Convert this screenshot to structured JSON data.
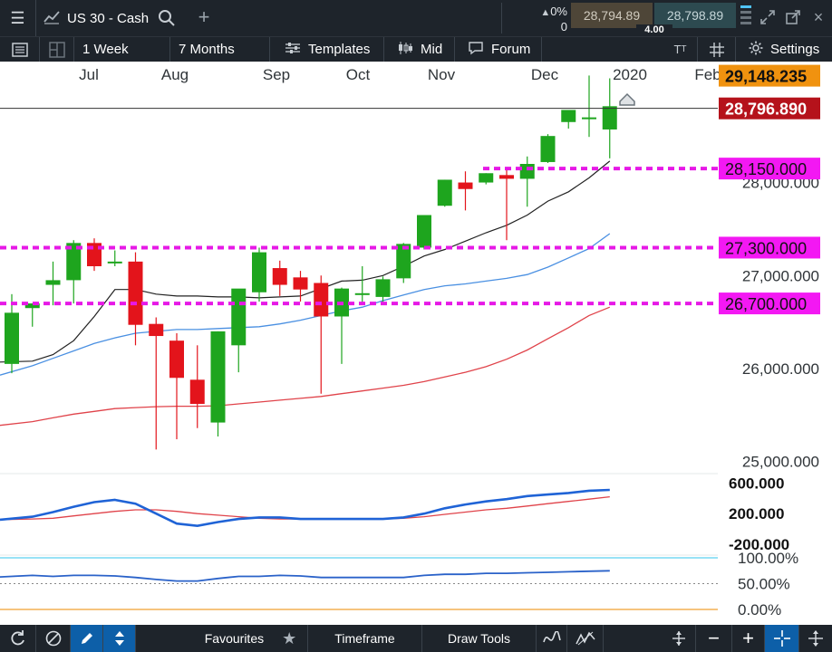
{
  "topbar": {
    "instrument": "US 30 - Cash",
    "change_pct": "0%",
    "change_abs": "0",
    "sell_price": "28,794.89",
    "buy_price": "28,798.89",
    "spread": "4.00"
  },
  "toolbar": {
    "interval": "1 Week",
    "range": "7 Months",
    "templates": "Templates",
    "price_type": "Mid",
    "forum": "Forum",
    "settings": "Settings"
  },
  "bottombar": {
    "favourites": "Favourites",
    "timeframe": "Timeframe",
    "draw_tools": "Draw Tools"
  },
  "colors": {
    "bull": "#1ea51e",
    "bear": "#e3141b",
    "level_line": "#e619e6",
    "ma_fast": "#222222",
    "ma_mid": "#4a90e2",
    "ma_slow": "#e0434a",
    "current_price_bg": "#b5121b",
    "high_price_bg": "#f0920f"
  },
  "chart_data": {
    "type": "candlestick",
    "x_labels": [
      "Jul",
      "Aug",
      "Sep",
      "Oct",
      "Nov",
      "Dec",
      "2020",
      "Feb"
    ],
    "y_labels": [
      "28,000.000",
      "27,000.000",
      "26,000.000",
      "25,000.000"
    ],
    "ylim": [
      24900,
      29300
    ],
    "price_tags": {
      "high": "29,148.235",
      "current": "28,796.890",
      "levels": [
        "28,150.000",
        "27,300.000",
        "26,700.000"
      ]
    },
    "level_values": [
      28150,
      27300,
      26700
    ],
    "current_value": 28796.89,
    "candles": [
      {
        "o": 26050,
        "h": 26800,
        "l": 25950,
        "c": 26600
      },
      {
        "o": 26650,
        "h": 26700,
        "l": 26450,
        "c": 26700
      },
      {
        "o": 26900,
        "h": 27150,
        "l": 26680,
        "c": 26950
      },
      {
        "o": 26950,
        "h": 27380,
        "l": 26700,
        "c": 27350
      },
      {
        "o": 27350,
        "h": 27400,
        "l": 27050,
        "c": 27100
      },
      {
        "o": 27150,
        "h": 27270,
        "l": 27100,
        "c": 27150
      },
      {
        "o": 27150,
        "h": 27250,
        "l": 26250,
        "c": 26470
      },
      {
        "o": 26480,
        "h": 26550,
        "l": 25130,
        "c": 26350
      },
      {
        "o": 26300,
        "h": 26380,
        "l": 25240,
        "c": 25900
      },
      {
        "o": 25880,
        "h": 26250,
        "l": 25360,
        "c": 25620
      },
      {
        "o": 25420,
        "h": 26400,
        "l": 25270,
        "c": 26400
      },
      {
        "o": 26250,
        "h": 26850,
        "l": 25960,
        "c": 26860
      },
      {
        "o": 26820,
        "h": 27300,
        "l": 26720,
        "c": 27250
      },
      {
        "o": 27080,
        "h": 27160,
        "l": 26780,
        "c": 26900
      },
      {
        "o": 26980,
        "h": 27050,
        "l": 26720,
        "c": 26850
      },
      {
        "o": 26920,
        "h": 27000,
        "l": 25730,
        "c": 26560
      },
      {
        "o": 26560,
        "h": 26870,
        "l": 26050,
        "c": 26860
      },
      {
        "o": 26810,
        "h": 27100,
        "l": 26690,
        "c": 26810
      },
      {
        "o": 26770,
        "h": 26990,
        "l": 26690,
        "c": 26960
      },
      {
        "o": 26970,
        "h": 27350,
        "l": 26920,
        "c": 27340
      },
      {
        "o": 27300,
        "h": 27650,
        "l": 27280,
        "c": 27650
      },
      {
        "o": 27750,
        "h": 28030,
        "l": 27740,
        "c": 28030
      },
      {
        "o": 28000,
        "h": 28120,
        "l": 27700,
        "c": 27930
      },
      {
        "o": 28000,
        "h": 28100,
        "l": 27980,
        "c": 28100
      },
      {
        "o": 28080,
        "h": 28150,
        "l": 27380,
        "c": 28040
      },
      {
        "o": 28040,
        "h": 28280,
        "l": 27740,
        "c": 28200
      },
      {
        "o": 28220,
        "h": 28520,
        "l": 28210,
        "c": 28500
      },
      {
        "o": 28650,
        "h": 28760,
        "l": 28580,
        "c": 28780
      },
      {
        "o": 28700,
        "h": 29150,
        "l": 28490,
        "c": 28700
      },
      {
        "o": 28570,
        "h": 29120,
        "l": 28260,
        "c": 28820
      }
    ],
    "ma_fast": [
      26070,
      26080,
      26150,
      26300,
      26560,
      26850,
      26850,
      26800,
      26780,
      26780,
      26770,
      26770,
      26760,
      26770,
      26780,
      26860,
      26940,
      26950,
      27000,
      27100,
      27210,
      27280,
      27370,
      27460,
      27540,
      27650,
      27800,
      27900,
      28050,
      28230
    ],
    "ma_mid": [
      25930,
      26030,
      26110,
      26190,
      26270,
      26330,
      26380,
      26400,
      26420,
      26420,
      26430,
      26440,
      26450,
      26480,
      26520,
      26570,
      26620,
      26660,
      26730,
      26790,
      26850,
      26890,
      26910,
      26940,
      26970,
      27010,
      27090,
      27190,
      27290,
      27450
    ],
    "ma_slow": [
      25390,
      25430,
      25470,
      25510,
      25540,
      25570,
      25580,
      25590,
      25595,
      25595,
      25600,
      25620,
      25640,
      25660,
      25680,
      25700,
      25730,
      25760,
      25790,
      25820,
      25860,
      25910,
      25960,
      26020,
      26100,
      26200,
      26320,
      26440,
      26570,
      26660
    ],
    "indicator1": {
      "y_labels": [
        "600.000",
        "200.000",
        "-200.000"
      ],
      "ylim": [
        -260,
        700
      ],
      "blue": [
        120,
        160,
        220,
        290,
        350,
        380,
        330,
        200,
        70,
        40,
        90,
        130,
        150,
        150,
        130,
        130,
        130,
        130,
        130,
        150,
        200,
        270,
        320,
        360,
        390,
        430,
        450,
        470,
        500,
        510
      ],
      "red": [
        120,
        130,
        140,
        170,
        200,
        230,
        250,
        250,
        230,
        200,
        180,
        160,
        140,
        130,
        130,
        130,
        130,
        130,
        130,
        140,
        160,
        190,
        220,
        250,
        270,
        300,
        330,
        360,
        390,
        420
      ]
    },
    "indicator2": {
      "y_labels": [
        "100.00%",
        "50.00%",
        "0.00%"
      ],
      "ylim": [
        0,
        100
      ],
      "values": [
        63,
        66,
        64,
        66,
        66,
        65,
        62,
        58,
        55,
        55,
        60,
        64,
        64,
        66,
        65,
        62,
        62,
        62,
        62,
        62,
        66,
        68,
        68,
        70,
        70,
        71,
        72,
        73,
        74,
        75
      ]
    }
  }
}
